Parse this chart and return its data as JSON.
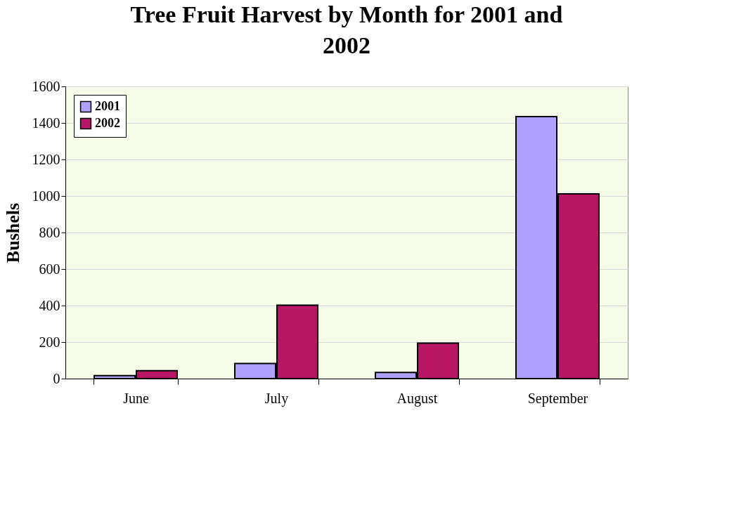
{
  "chart_data": {
    "type": "bar",
    "title": "Tree Fruit Harvest by Month for 2001 and 2002",
    "ylabel": "Bushels",
    "categories": [
      "June",
      "July",
      "August",
      "September"
    ],
    "series": [
      {
        "name": "2001",
        "color": "#b0a0ff",
        "values": [
          16,
          83,
          34,
          1435
        ]
      },
      {
        "name": "2002",
        "color": "#b81665",
        "values": [
          43,
          402,
          194,
          1012
        ]
      }
    ],
    "ylim": [
      0,
      1600
    ],
    "yticks": [
      0,
      200,
      400,
      600,
      800,
      1000,
      1200,
      1400,
      1600
    ],
    "grid": "y",
    "legend": "top left"
  }
}
